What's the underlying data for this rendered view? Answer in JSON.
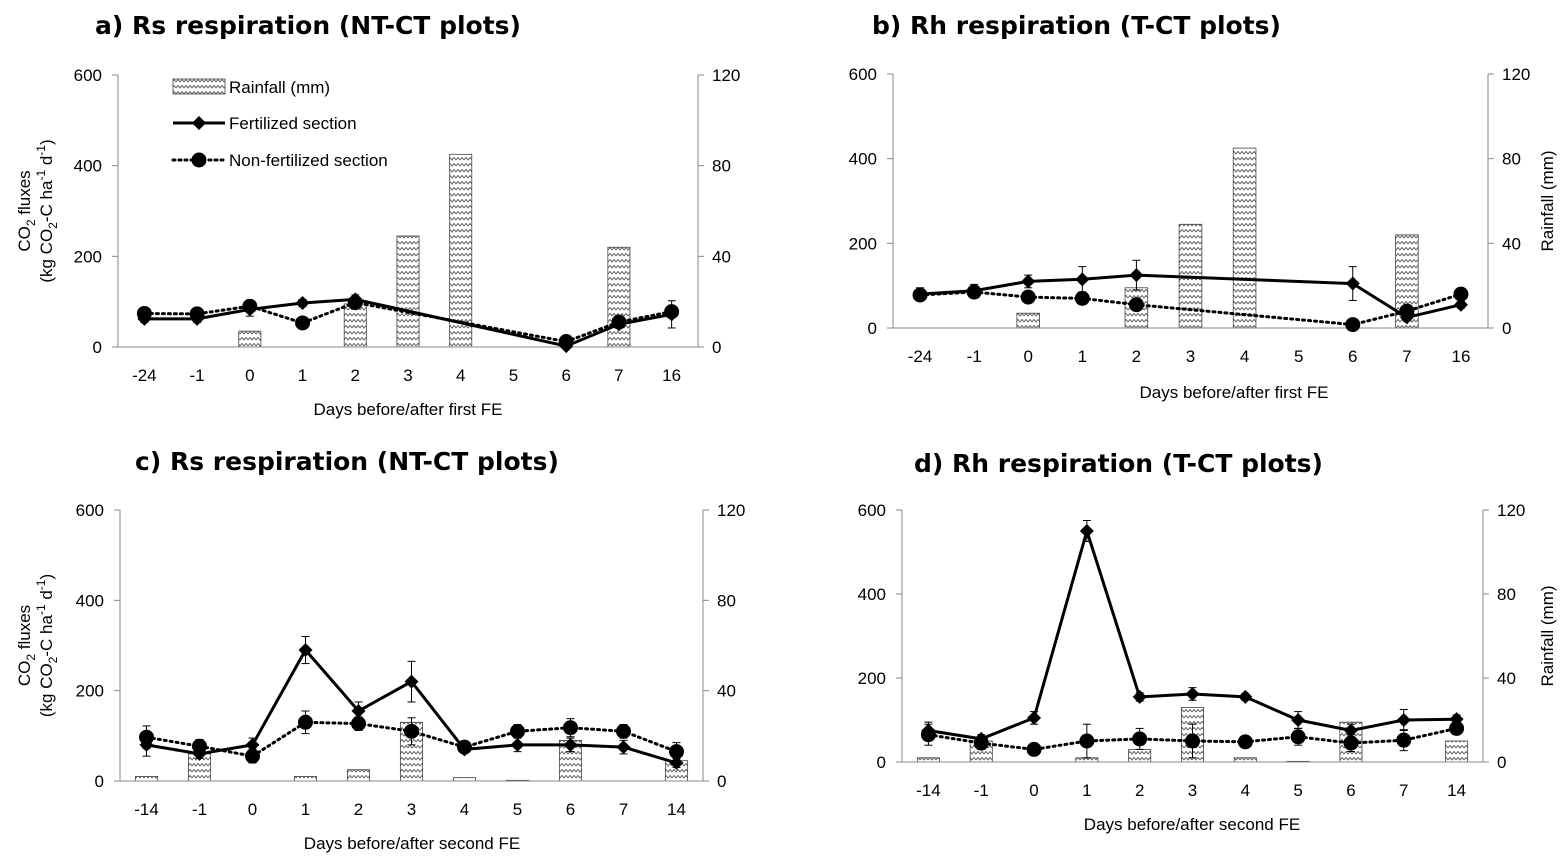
{
  "chart_data": [
    {
      "type": "bar",
      "title": "a) Rs respiration (NT-CT plots)",
      "xlabel": "Days before/after first FE",
      "ylabel_lines": [
        "CO",
        "2",
        " fluxes",
        "(kg CO",
        "2",
        "-C ha",
        "-1",
        " d",
        "-1",
        ")"
      ],
      "y2label": "",
      "categories": [
        "-24",
        "-1",
        "0",
        "1",
        "2",
        "3",
        "4",
        "5",
        "6",
        "7",
        "16"
      ],
      "ylim": [
        0,
        600
      ],
      "yticks": [
        "0",
        "200",
        "400",
        "600"
      ],
      "y2lim": [
        0,
        120
      ],
      "y2ticks": [
        "0",
        "40",
        "80",
        "120"
      ],
      "rainfall": [
        0,
        0,
        7,
        0,
        19,
        49,
        85,
        0,
        0,
        44,
        0
      ],
      "fertilized": [
        62,
        62,
        83,
        97,
        105,
        null,
        null,
        null,
        2,
        50,
        72
      ],
      "fertilized_err": [
        8,
        8,
        15,
        8,
        10,
        null,
        null,
        null,
        5,
        8,
        30
      ],
      "nonfertilized": [
        74,
        73,
        90,
        53,
        98,
        null,
        null,
        null,
        12,
        55,
        78
      ],
      "nonfertilized_err": [
        5,
        5,
        8,
        8,
        8,
        null,
        null,
        null,
        5,
        8,
        10
      ],
      "legend": {
        "rainfall": "Rainfall (mm)",
        "fertilized": "Fertilized section",
        "nonfertilized": "Non-fertilized section"
      },
      "show_legend": true
    },
    {
      "type": "bar",
      "title": "b) Rh respiration (T-CT plots)",
      "xlabel": "Days before/after first FE",
      "ylabel_lines": [],
      "y2label": "Rainfall (mm)",
      "categories": [
        "-24",
        "-1",
        "0",
        "1",
        "2",
        "3",
        "4",
        "5",
        "6",
        "7",
        "16"
      ],
      "ylim": [
        0,
        600
      ],
      "yticks": [
        "0",
        "200",
        "400",
        "600"
      ],
      "y2lim": [
        0,
        120
      ],
      "y2ticks": [
        "0",
        "40",
        "80",
        "120"
      ],
      "rainfall": [
        0,
        0,
        7,
        0,
        19,
        49,
        85,
        0,
        0,
        44,
        0
      ],
      "fertilized": [
        80,
        88,
        110,
        115,
        125,
        null,
        null,
        null,
        105,
        25,
        55
      ],
      "fertilized_err": [
        15,
        15,
        15,
        30,
        35,
        null,
        null,
        null,
        40,
        8,
        8
      ],
      "nonfertilized": [
        78,
        85,
        73,
        70,
        55,
        null,
        null,
        null,
        8,
        40,
        80
      ],
      "nonfertilized_err": [
        8,
        8,
        8,
        8,
        8,
        null,
        null,
        null,
        5,
        8,
        8
      ],
      "show_legend": false
    },
    {
      "type": "bar",
      "title": "c) Rs respiration (NT-CT plots)",
      "xlabel": "Days before/after second FE",
      "ylabel_lines": [
        "CO",
        "2",
        " fluxes",
        "(kg CO",
        "2",
        "-C ha",
        "-1",
        " d",
        "-1",
        ")"
      ],
      "y2label": "",
      "categories": [
        "-14",
        "-1",
        "0",
        "1",
        "2",
        "3",
        "4",
        "5",
        "6",
        "7",
        "14"
      ],
      "ylim": [
        0,
        600
      ],
      "yticks": [
        "0",
        "200",
        "400",
        "600"
      ],
      "y2lim": [
        0,
        120
      ],
      "y2ticks": [
        "0",
        "40",
        "80",
        "120"
      ],
      "rainfall": [
        2,
        12,
        0,
        2,
        5,
        26,
        1.5,
        0.3,
        18,
        0,
        9
      ],
      "fertilized": [
        80,
        60,
        80,
        290,
        155,
        220,
        70,
        80,
        80,
        75,
        40
      ],
      "fertilized_err": [
        25,
        10,
        15,
        30,
        20,
        45,
        8,
        15,
        15,
        15,
        10
      ],
      "nonfertilized": [
        97,
        77,
        55,
        130,
        127,
        110,
        75,
        110,
        118,
        110,
        65
      ],
      "nonfertilized_err": [
        25,
        15,
        15,
        25,
        15,
        30,
        10,
        15,
        20,
        15,
        20
      ],
      "show_legend": false
    },
    {
      "type": "bar",
      "title": "d) Rh respiration (T-CT plots)",
      "xlabel": "Days before/after second FE",
      "ylabel_lines": [],
      "y2label": "Rainfall (mm)",
      "categories": [
        "-14",
        "-1",
        "0",
        "1",
        "2",
        "3",
        "4",
        "5",
        "6",
        "7",
        "14"
      ],
      "ylim": [
        0,
        600
      ],
      "yticks": [
        "0",
        "200",
        "400",
        "600"
      ],
      "y2lim": [
        0,
        120
      ],
      "y2ticks": [
        "0",
        "40",
        "80",
        "120"
      ],
      "rainfall": [
        2,
        10,
        0,
        2,
        6,
        26,
        2,
        0.3,
        19,
        0,
        10
      ],
      "fertilized": [
        75,
        55,
        105,
        550,
        155,
        162,
        155,
        100,
        75,
        100,
        102
      ],
      "fertilized_err": [
        20,
        10,
        15,
        25,
        10,
        15,
        8,
        20,
        15,
        25,
        10
      ],
      "nonfertilized": [
        65,
        45,
        30,
        50,
        55,
        50,
        48,
        60,
        45,
        52,
        80
      ],
      "nonfertilized_err": [
        25,
        15,
        10,
        40,
        25,
        40,
        8,
        20,
        20,
        25,
        10
      ],
      "show_legend": false
    }
  ]
}
